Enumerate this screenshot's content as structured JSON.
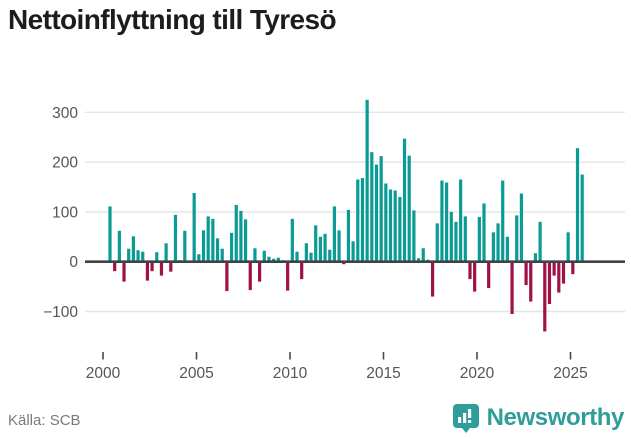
{
  "title": "Nettoinflyttning till Tyresö",
  "source": "Källa: SCB",
  "brand": {
    "name": "Newsworthy"
  },
  "colors": {
    "positive": "#0a9b94",
    "negative": "#a01246",
    "zero_axis": "#3f4246",
    "grid": "#e4e4e4",
    "tick_label": "#555555",
    "tick_mark": "#4a4a4a",
    "title_text": "#1c1c1c",
    "source_text": "#7a7a7a",
    "brand_teal": "#2f9d99"
  },
  "chart_data": {
    "type": "bar",
    "title": "Nettoinflyttning till Tyresö",
    "x_unit": "quarter",
    "start_quarter": "2000 Q2",
    "end_quarter": "2025 Q3",
    "x_tick_labels": [
      "2000",
      "2005",
      "2010",
      "2015",
      "2020",
      "2025"
    ],
    "y_ticks": [
      300,
      200,
      100,
      0,
      -100
    ],
    "ylim": [
      -160,
      350
    ],
    "grid": true,
    "legend": "none",
    "values": [
      111,
      -19,
      62,
      -40,
      26,
      51,
      23,
      20,
      -38,
      -19,
      19,
      -28,
      37,
      -20,
      94,
      3,
      62,
      2,
      138,
      15,
      63,
      91,
      86,
      47,
      26,
      -59,
      58,
      114,
      102,
      85,
      -57,
      27,
      -40,
      22,
      10,
      6,
      8,
      3,
      -58,
      86,
      20,
      -35,
      37,
      18,
      73,
      50,
      56,
      24,
      111,
      63,
      -5,
      104,
      41,
      165,
      168,
      325,
      220,
      195,
      212,
      157,
      145,
      143,
      130,
      247,
      213,
      103,
      7,
      27,
      4,
      -70,
      77,
      163,
      159,
      100,
      80,
      165,
      91,
      -35,
      -60,
      90,
      117,
      -53,
      59,
      77,
      163,
      50,
      -105,
      93,
      137,
      -47,
      -80,
      17,
      80,
      -140,
      -85,
      -28,
      -62,
      -44,
      59,
      -25,
      228,
      175
    ]
  }
}
